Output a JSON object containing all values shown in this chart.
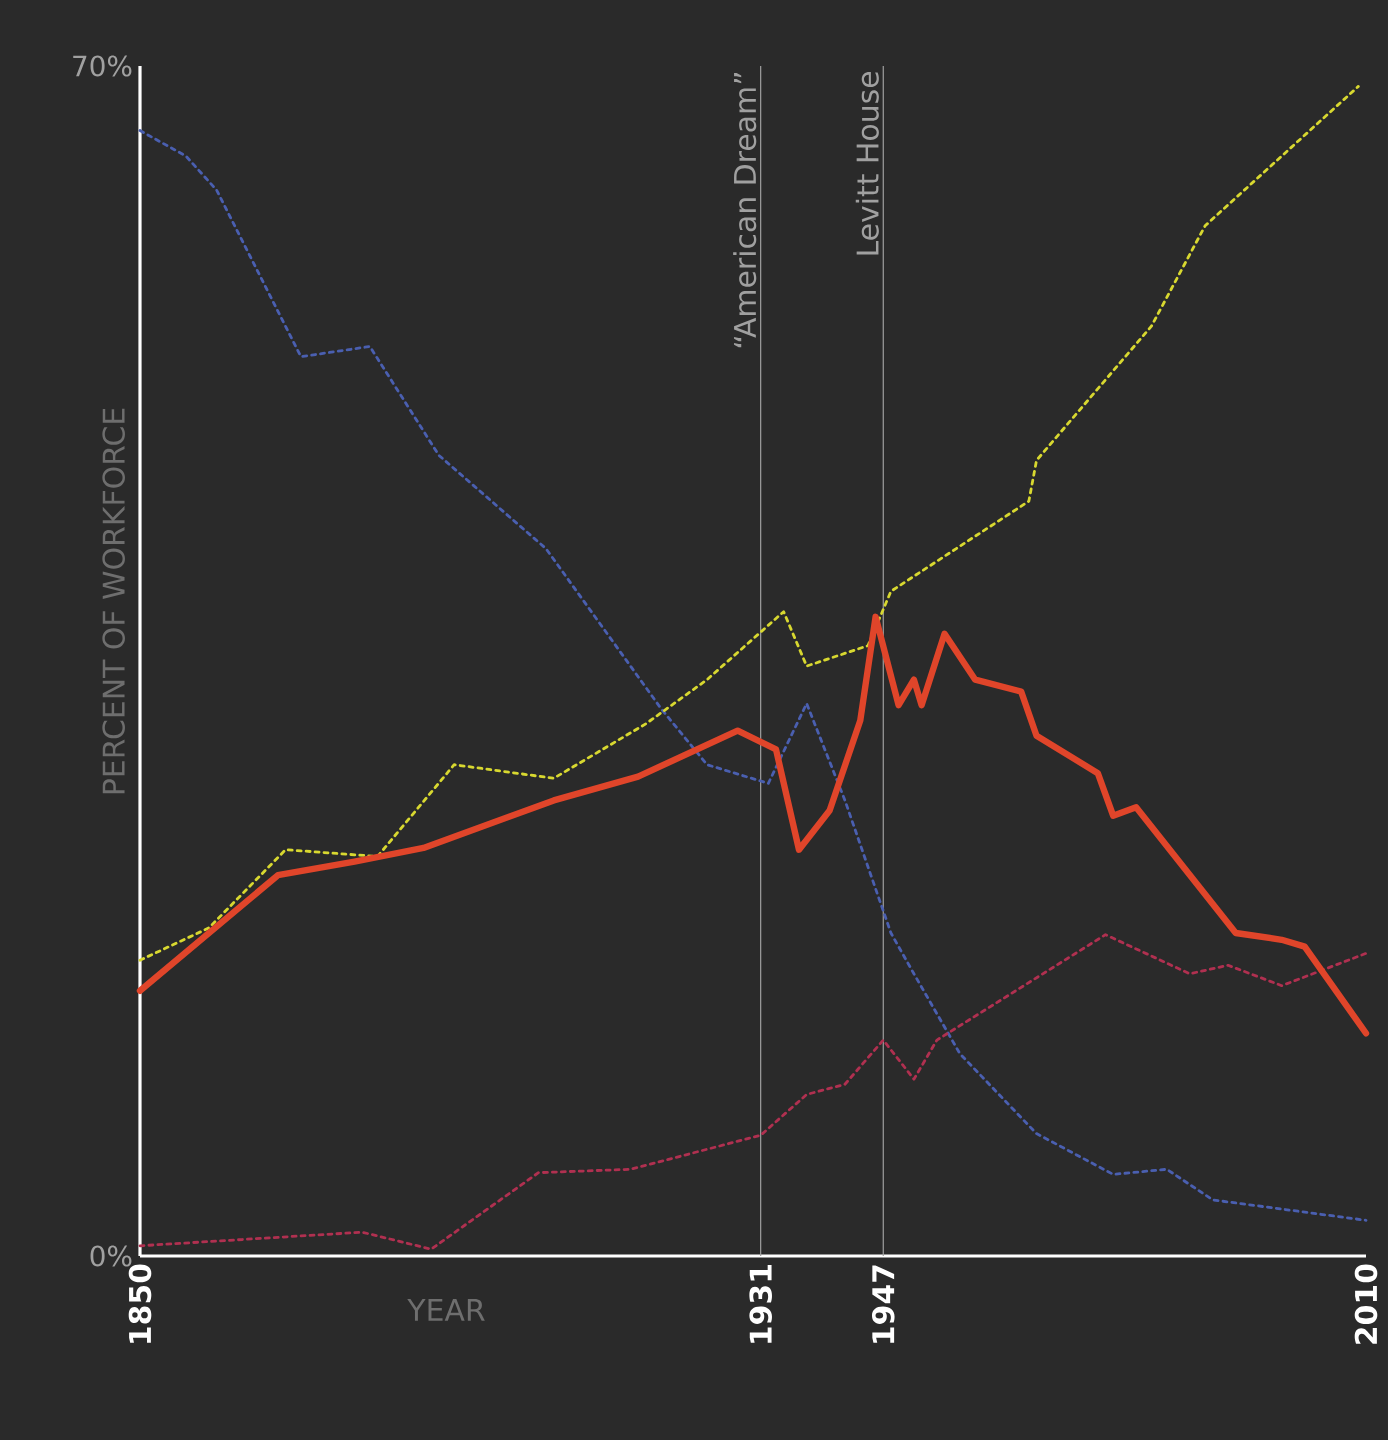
{
  "chart_data": {
    "type": "line",
    "xlabel": "YEAR",
    "ylabel": "PERCENT OF WORKFORCE",
    "xlim": [
      1850,
      2010
    ],
    "ylim": [
      0,
      70
    ],
    "xticks": [
      1850,
      1931,
      1947,
      2010
    ],
    "yticks": [
      {
        "value": 0,
        "label": "0%"
      },
      {
        "value": 70,
        "label": "70%"
      }
    ],
    "grid": false,
    "marker": "none",
    "ref_lines": [
      {
        "axis": "x",
        "value": 1931,
        "label": "“American Dream”",
        "color": "#a0a0a0"
      },
      {
        "axis": "x",
        "value": 1947,
        "label": "Levitt House",
        "color": "#a0a0a0"
      }
    ],
    "series": [
      {
        "color": "#4a5fb0",
        "line_style": "dotted",
        "x": [
          1850,
          1856,
          1860,
          1871,
          1880,
          1889,
          1903,
          1918,
          1924,
          1932,
          1937,
          1942,
          1948,
          1951,
          1957,
          1967,
          1977,
          1984,
          1990,
          2010
        ],
        "values": [
          66.2,
          64.7,
          62.7,
          52.9,
          53.5,
          47.1,
          41.6,
          32.2,
          28.9,
          27.8,
          32.5,
          26.8,
          19.0,
          16.6,
          11.9,
          7.2,
          4.8,
          5.1,
          3.3,
          2.1
        ]
      },
      {
        "color": "#d8d830",
        "line_style": "dotted",
        "x": [
          1850,
          1859,
          1869,
          1881,
          1891,
          1904,
          1916,
          1924,
          1934,
          1937,
          1945,
          1948,
          1966,
          1967,
          1982,
          1989,
          2009
        ],
        "values": [
          17.4,
          19.3,
          23.9,
          23.5,
          28.9,
          28.1,
          31.3,
          33.9,
          37.9,
          34.7,
          35.9,
          39.1,
          44.4,
          46.8,
          54.7,
          60.6,
          68.8
        ]
      },
      {
        "color": "#b03050",
        "line_style": "dotted",
        "x": [
          1850,
          1879,
          1888,
          1902,
          1914,
          1931,
          1937,
          1942,
          1947,
          1951,
          1954,
          1976,
          1987,
          1992,
          1999,
          2010
        ],
        "values": [
          0.6,
          1.4,
          0.4,
          4.9,
          5.1,
          7.1,
          9.5,
          10.1,
          12.7,
          10.4,
          12.7,
          18.9,
          16.6,
          17.1,
          15.9,
          17.8
        ]
      },
      {
        "color": "#e0452a",
        "line_style": "solid",
        "x": [
          1850,
          1868,
          1878,
          1887,
          1904,
          1915,
          1928,
          1933,
          1936,
          1940,
          1944,
          1946,
          1949,
          1951,
          1952,
          1955,
          1959,
          1965,
          1967,
          1975,
          1977,
          1980,
          1993,
          1999,
          2002,
          2010
        ],
        "values": [
          15.6,
          22.4,
          23.2,
          24.0,
          26.8,
          28.2,
          30.9,
          29.8,
          23.9,
          26.2,
          31.5,
          37.6,
          32.4,
          33.9,
          32.4,
          36.6,
          33.9,
          33.2,
          30.6,
          28.4,
          25.9,
          26.4,
          19.0,
          18.6,
          18.2,
          13.1
        ]
      }
    ]
  }
}
